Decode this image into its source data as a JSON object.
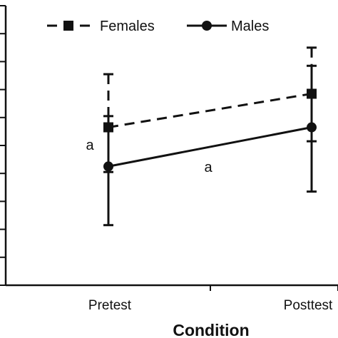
{
  "chart_data": {
    "type": "line",
    "title": "",
    "xlabel": "Condition",
    "ylabel": "",
    "categories": [
      "Pretest",
      "Posttest"
    ],
    "ylim": [
      0,
      10
    ],
    "y_ticks": [
      0,
      1,
      2,
      3,
      4,
      5,
      6,
      7,
      8,
      9,
      10
    ],
    "y_tick_labels_visible": false,
    "grid": false,
    "legend": "top",
    "series": [
      {
        "name": "Females",
        "values": [
          5.65,
          6.85
        ],
        "error_upper": [
          7.55,
          8.5
        ],
        "error_lower": [
          4.05,
          5.15
        ],
        "color": "#111111",
        "line_style": "dashed",
        "marker": "square"
      },
      {
        "name": "Males",
        "values": [
          4.25,
          5.65
        ],
        "error_upper": [
          6.05,
          7.85
        ],
        "error_lower": [
          2.15,
          3.35
        ],
        "color": "#111111",
        "line_style": "solid",
        "marker": "circle"
      }
    ],
    "annotations": [
      {
        "text": "a",
        "near": "Pretest, between series"
      },
      {
        "text": "a",
        "near": "Males line midpoint"
      }
    ]
  }
}
